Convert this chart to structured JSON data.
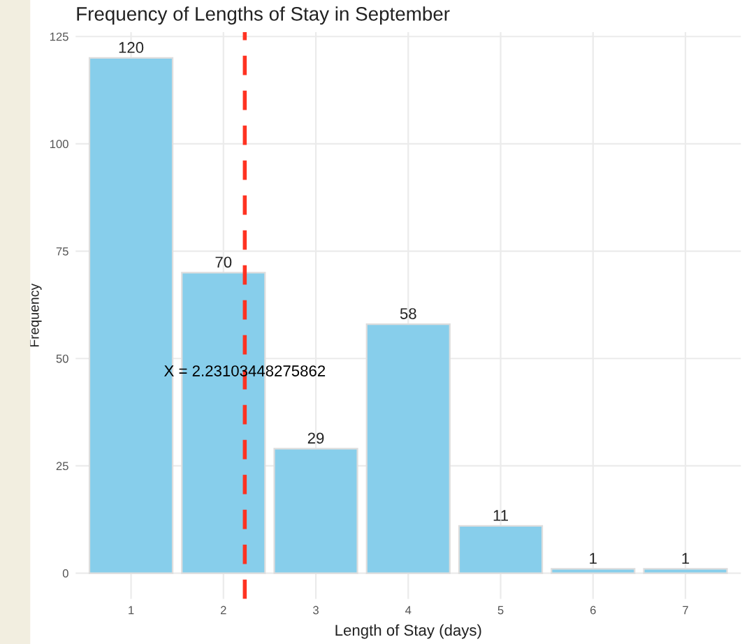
{
  "chart_data": {
    "type": "bar",
    "title": "Frequency of Lengths of Stay in September",
    "xlabel": "Length of Stay (days)",
    "ylabel": "Frequency",
    "x": [
      1,
      2,
      3,
      4,
      5,
      6,
      7
    ],
    "values": [
      120,
      70,
      29,
      58,
      11,
      1,
      1
    ],
    "color": "#87ceeb",
    "data_labels": true,
    "xlim": [
      0.4,
      7.6
    ],
    "xticks": [
      1,
      2,
      3,
      4,
      5,
      6,
      7
    ],
    "ylim": [
      -6,
      126
    ],
    "yticks": [
      0,
      25,
      50,
      75,
      100,
      125
    ],
    "grid": true,
    "ref_lines": [
      {
        "axis": "x",
        "value": 2.23103448275862,
        "label": "X = 2.23103448275862",
        "color": "#ff3322",
        "line_style": "dashed"
      }
    ]
  }
}
